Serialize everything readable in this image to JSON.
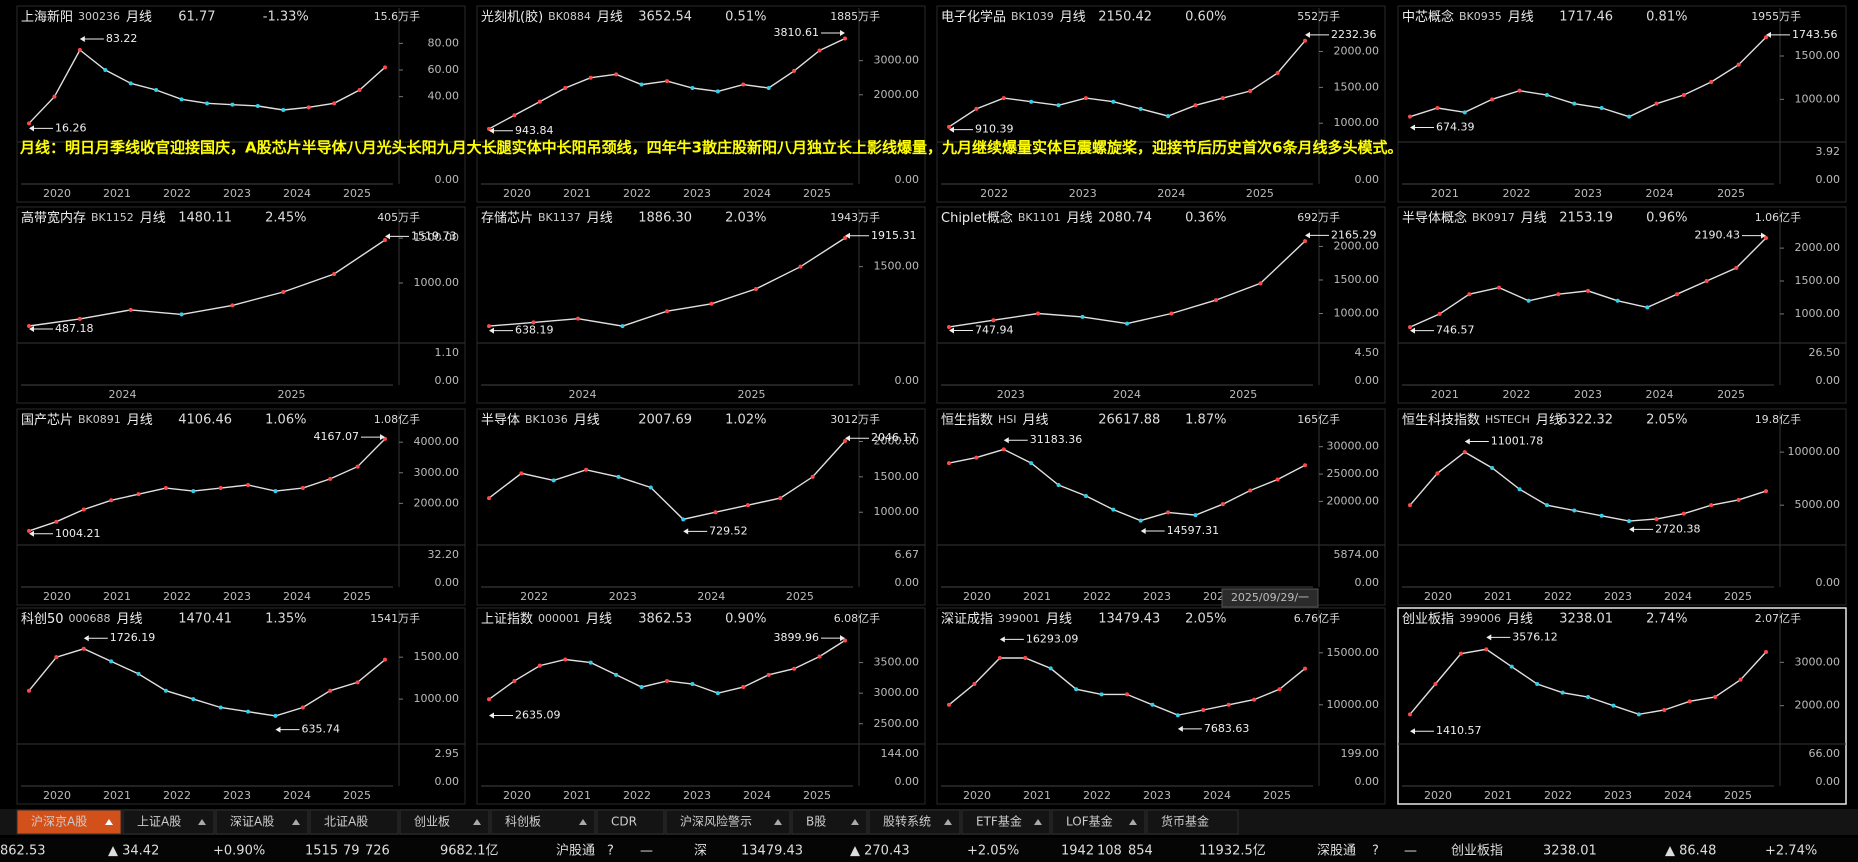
{
  "panels": [
    {
      "name": "上海新阳",
      "code": "300236",
      "period": "月线",
      "price": "61.77",
      "change": "-1.33%",
      "volume": "15.6万手",
      "ylim": [
        12,
        90
      ],
      "yticks": [
        {
          "value": 80,
          "label": "80.00"
        },
        {
          "value": 60,
          "label": "60.00"
        },
        {
          "value": 40,
          "label": "40.00"
        }
      ],
      "vticks": [
        "0.00"
      ],
      "years": [
        "2020",
        "2021",
        "2022",
        "2023",
        "2024",
        "2025"
      ],
      "high": 83.22,
      "low": 16.26,
      "closes": [
        20,
        40,
        75,
        60,
        50,
        45,
        38,
        35,
        34,
        33,
        30,
        32,
        35,
        45,
        62
      ]
    },
    {
      "name": "光刻机(胶)",
      "code": "BK0884",
      "period": "月线",
      "price": "3652.54",
      "change": "0.51%",
      "volume": "1885万手",
      "ylim": [
        850,
        3900
      ],
      "yticks": [
        {
          "value": 3000,
          "label": "3000.00"
        },
        {
          "value": 2000,
          "label": "2000.00"
        }
      ],
      "vticks": [
        "0.00"
      ],
      "years": [
        "2020",
        "2021",
        "2022",
        "2023",
        "2024",
        "2025"
      ],
      "high": 3810.61,
      "high_arrow_right": true,
      "low": 943.84,
      "closes": [
        1000,
        1400,
        1800,
        2200,
        2500,
        2600,
        2300,
        2400,
        2200,
        2100,
        2300,
        2200,
        2700,
        3300,
        3650
      ]
    },
    {
      "name": "电子化学品",
      "code": "BK1039",
      "period": "月线",
      "price": "2150.42",
      "change": "0.60%",
      "volume": "552万手",
      "ylim": [
        850,
        2300
      ],
      "yticks": [
        {
          "value": 2000,
          "label": "2000.00"
        },
        {
          "value": 1500,
          "label": "1500.00"
        },
        {
          "value": 1000,
          "label": "1000.00"
        }
      ],
      "vticks": [
        "0.00"
      ],
      "years": [
        "2022",
        "2023",
        "2024",
        "2025"
      ],
      "high": 2232.36,
      "low": 910.39,
      "closes": [
        950,
        1200,
        1350,
        1300,
        1250,
        1350,
        1300,
        1200,
        1100,
        1250,
        1350,
        1450,
        1700,
        2150
      ]
    },
    {
      "name": "中芯概念",
      "code": "BK0935",
      "period": "月线",
      "price": "1717.46",
      "change": "0.81%",
      "volume": "1955万手",
      "ylim": [
        600,
        1800
      ],
      "yticks": [
        {
          "value": 1500,
          "label": "1500.00"
        },
        {
          "value": 1000,
          "label": "1000.00"
        }
      ],
      "vticks": [
        "3.92",
        "0.00"
      ],
      "years": [
        "2021",
        "2022",
        "2023",
        "2024",
        "2025"
      ],
      "high": 1743.56,
      "low": 674.39,
      "closes": [
        800,
        900,
        850,
        1000,
        1100,
        1050,
        950,
        900,
        800,
        950,
        1050,
        1200,
        1400,
        1717
      ]
    },
    {
      "name": "高带宽内存",
      "code": "BK1152",
      "period": "月线",
      "price": "1480.11",
      "change": "2.45%",
      "volume": "405万手",
      "ylim": [
        420,
        1580
      ],
      "yticks": [
        {
          "value": 1500,
          "label": "1500.00"
        },
        {
          "value": 1000,
          "label": "1000.00"
        }
      ],
      "vticks": [
        "1.10",
        "0.00"
      ],
      "years": [
        "2024",
        "2025"
      ],
      "high": 1519.73,
      "low": 487.18,
      "closes": [
        520,
        600,
        700,
        650,
        750,
        900,
        1100,
        1480
      ]
    },
    {
      "name": "存储芯片",
      "code": "BK1137",
      "period": "月线",
      "price": "1886.30",
      "change": "2.03%",
      "volume": "1943万手",
      "ylim": [
        580,
        1980
      ],
      "yticks": [
        {
          "value": 1500,
          "label": "1500.00"
        }
      ],
      "vticks": [
        "0.00"
      ],
      "years": [
        "2024",
        "2025"
      ],
      "high": 1915.31,
      "low": 638.19,
      "closes": [
        700,
        750,
        800,
        700,
        900,
        1000,
        1200,
        1500,
        1886
      ]
    },
    {
      "name": "Chiplet概念",
      "code": "BK1101",
      "period": "月线",
      "price": "2080.74",
      "change": "0.36%",
      "volume": "692万手",
      "ylim": [
        680,
        2230
      ],
      "yticks": [
        {
          "value": 2000,
          "label": "2000.00"
        },
        {
          "value": 1500,
          "label": "1500.00"
        },
        {
          "value": 1000,
          "label": "1000.00"
        }
      ],
      "vticks": [
        "4.50",
        "0.00"
      ],
      "years": [
        "2023",
        "2024",
        "2025"
      ],
      "high": 2165.29,
      "low": 747.94,
      "closes": [
        800,
        900,
        1000,
        950,
        850,
        1000,
        1200,
        1450,
        2080
      ]
    },
    {
      "name": "半导体概念",
      "code": "BK0917",
      "period": "月线",
      "price": "2153.19",
      "change": "0.96%",
      "volume": "1.06亿手",
      "ylim": [
        680,
        2260
      ],
      "yticks": [
        {
          "value": 2000,
          "label": "2000.00"
        },
        {
          "value": 1500,
          "label": "1500.00"
        },
        {
          "value": 1000,
          "label": "1000.00"
        }
      ],
      "vticks": [
        "26.50",
        "0.00"
      ],
      "years": [
        "2021",
        "2022",
        "2023",
        "2024",
        "2025"
      ],
      "high": 2190.43,
      "high_arrow_right": true,
      "low": 746.57,
      "closes": [
        800,
        1000,
        1300,
        1400,
        1200,
        1300,
        1350,
        1200,
        1100,
        1300,
        1500,
        1700,
        2153
      ]
    },
    {
      "name": "国产芯片",
      "code": "BK0891",
      "period": "月线",
      "price": "4106.46",
      "change": "1.06%",
      "volume": "1.08亿手",
      "ylim": [
        900,
        4300
      ],
      "yticks": [
        {
          "value": 4000,
          "label": "4000.00"
        },
        {
          "value": 3000,
          "label": "3000.00"
        },
        {
          "value": 2000,
          "label": "2000.00"
        }
      ],
      "vticks": [
        "32.20",
        "0.00"
      ],
      "years": [
        "2020",
        "2021",
        "2022",
        "2023",
        "2024",
        "2025"
      ],
      "high": 4167.07,
      "high_arrow_right": true,
      "low": 1004.21,
      "closes": [
        1100,
        1400,
        1800,
        2100,
        2300,
        2500,
        2400,
        2500,
        2600,
        2400,
        2500,
        2800,
        3200,
        4106
      ]
    },
    {
      "name": "半导体",
      "code": "BK1036",
      "period": "月线",
      "price": "2007.69",
      "change": "1.02%",
      "volume": "3012万手",
      "ylim": [
        650,
        2120
      ],
      "yticks": [
        {
          "value": 2000,
          "label": "2000.00"
        },
        {
          "value": 1500,
          "label": "1500.00"
        },
        {
          "value": 1000,
          "label": "1000.00"
        }
      ],
      "vticks": [
        "6.67",
        "0.00"
      ],
      "years": [
        "2022",
        "2023",
        "2024",
        "2025"
      ],
      "high": 2046.17,
      "low": 729.52,
      "closes": [
        1200,
        1550,
        1450,
        1600,
        1500,
        1350,
        900,
        1000,
        1100,
        1200,
        1500,
        2007
      ]
    },
    {
      "name": "恒生指数",
      "code": "HSI",
      "period": "月线",
      "price": "26617.88",
      "change": "1.87%",
      "volume": "165亿手",
      "ylim": [
        13500,
        32500
      ],
      "yticks": [
        {
          "value": 30000,
          "label": "30000.00"
        },
        {
          "value": 25000,
          "label": "25000.00"
        },
        {
          "value": 20000,
          "label": "20000.00"
        }
      ],
      "vticks": [
        "5874.00",
        "0.00"
      ],
      "years": [
        "2020",
        "2021",
        "2022",
        "2023",
        "2024",
        "2025"
      ],
      "high": 31183.36,
      "low": 14597.31,
      "closes": [
        27000,
        28000,
        29500,
        27000,
        23000,
        21000,
        18500,
        16500,
        18000,
        17500,
        19500,
        22000,
        24000,
        26618
      ]
    },
    {
      "name": "恒生科技指数",
      "code": "HSTECH",
      "period": "月线",
      "price": "6322.32",
      "change": "2.05%",
      "volume": "19.8亿手",
      "ylim": [
        2000,
        11800
      ],
      "yticks": [
        {
          "value": 10000,
          "label": "10000.00"
        },
        {
          "value": 5000,
          "label": "5000.00"
        }
      ],
      "vticks": [
        "0.00"
      ],
      "years": [
        "2020",
        "2021",
        "2022",
        "2023",
        "2024",
        "2025"
      ],
      "high": 11001.78,
      "low": 2720.38,
      "closes": [
        5000,
        8000,
        10000,
        8500,
        6500,
        5000,
        4500,
        4000,
        3500,
        3700,
        4200,
        5000,
        5500,
        6322
      ]
    },
    {
      "name": "科创50",
      "code": "000688",
      "period": "月线",
      "price": "1470.41",
      "change": "1.35%",
      "volume": "1541万手",
      "ylim": [
        560,
        1800
      ],
      "yticks": [
        {
          "value": 1500,
          "label": "1500.00"
        },
        {
          "value": 1000,
          "label": "1000.00"
        }
      ],
      "vticks": [
        "2.95",
        "0.00"
      ],
      "years": [
        "2020",
        "2021",
        "2022",
        "2023",
        "2024",
        "2025"
      ],
      "high": 1726.19,
      "low": 635.74,
      "closes": [
        1100,
        1500,
        1600,
        1450,
        1300,
        1100,
        1000,
        900,
        850,
        800,
        900,
        1100,
        1200,
        1470
      ]
    },
    {
      "name": "上证指数",
      "code": "000001",
      "period": "月线",
      "price": "3862.53",
      "change": "0.90%",
      "volume": "6.08亿手",
      "ylim": [
        2300,
        4000
      ],
      "yticks": [
        {
          "value": 3500,
          "label": "3500.00"
        },
        {
          "value": 3000,
          "label": "3000.00"
        },
        {
          "value": 2500,
          "label": "2500.00"
        }
      ],
      "vticks": [
        "144.00",
        "0.00"
      ],
      "years": [
        "2020",
        "2021",
        "2022",
        "2023",
        "2024",
        "2025"
      ],
      "high": 3899.96,
      "high_arrow_right": true,
      "low": 2635.09,
      "closes": [
        2900,
        3200,
        3450,
        3550,
        3500,
        3300,
        3100,
        3200,
        3150,
        3000,
        3100,
        3300,
        3400,
        3600,
        3862
      ]
    },
    {
      "name": "深证成指",
      "code": "399001",
      "period": "月线",
      "price": "13479.43",
      "change": "2.05%",
      "volume": "6.76亿手",
      "ylim": [
        7000,
        17000
      ],
      "yticks": [
        {
          "value": 15000,
          "label": "15000.00"
        },
        {
          "value": 10000,
          "label": "10000.00"
        }
      ],
      "vticks": [
        "199.00",
        "0.00"
      ],
      "years": [
        "2020",
        "2021",
        "2022",
        "2023",
        "2024",
        "2025"
      ],
      "high": 16293.09,
      "low": 7683.63,
      "closes": [
        10000,
        12000,
        14500,
        14500,
        13500,
        11500,
        11000,
        11000,
        10000,
        9000,
        9500,
        10000,
        10500,
        11500,
        13479
      ]
    },
    {
      "name": "创业板指",
      "code": "399006",
      "period": "月线",
      "price": "3238.01",
      "change": "2.74%",
      "volume": "2.07亿手",
      "ylim": [
        1300,
        3700
      ],
      "yticks": [
        {
          "value": 3000,
          "label": "3000.00"
        },
        {
          "value": 2000,
          "label": "2000.00"
        }
      ],
      "vticks": [
        "66.00",
        "0.00"
      ],
      "years": [
        "2020",
        "2021",
        "2022",
        "2023",
        "2024",
        "2025"
      ],
      "high": 3576.12,
      "low": 1410.57,
      "closes": [
        1800,
        2500,
        3200,
        3300,
        2900,
        2500,
        2300,
        2200,
        2000,
        1800,
        1900,
        2100,
        2200,
        2600,
        3238
      ],
      "selected": true
    }
  ],
  "annotation": "月线：明日月季线收官迎接国庆，A股芯片半导体八月光头长阳九月大长腿实体中长阳吊颈线，四年牛3散庄股新阳八月独立长上影线爆量，九月继续爆量实体巨震螺旋桨，迎接节后历史首次6条月线多头模式。",
  "date_label": "2025/09/29/一",
  "tabs": [
    {
      "label": "沪深京A股",
      "menu": true
    },
    {
      "label": "上证A股",
      "menu": true
    },
    {
      "label": "深证A股",
      "menu": true
    },
    {
      "label": "北证A股",
      "menu": false
    },
    {
      "label": "创业板",
      "menu": true
    },
    {
      "label": "科创板",
      "menu": true
    },
    {
      "label": "CDR",
      "menu": false
    },
    {
      "label": "沪深风险警示",
      "menu": true
    },
    {
      "label": "B股",
      "menu": true
    },
    {
      "label": "股转系统",
      "menu": true
    },
    {
      "label": "ETF基金",
      "menu": true
    },
    {
      "label": "LOF基金",
      "menu": true
    },
    {
      "label": "货币基金",
      "menu": false
    }
  ],
  "active_tab": 0,
  "status": [
    "862.53",
    "▲ 34.42",
    "+0.90%",
    "1515",
    "79",
    "726",
    "9682.1亿",
    "沪股通",
    "?",
    "—",
    "深",
    "13479.43",
    "▲ 270.43",
    "+2.05%",
    "1942",
    "108",
    "854",
    "11932.5亿",
    "深股通",
    "?",
    "—",
    "创业板指",
    "3238.01",
    "▲ 86.48",
    "+2.74%"
  ]
}
